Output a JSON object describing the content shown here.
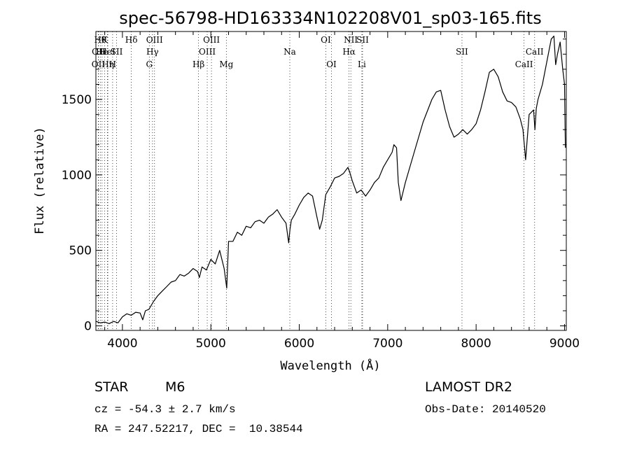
{
  "chart_data": {
    "type": "line",
    "title": "spec-56798-HD163334N102208V01_sp03-165.fits",
    "xlabel": "Wavelength (Å)",
    "ylabel": "Flux (relative)",
    "xlim": [
      3700,
      9020
    ],
    "ylim": [
      -30,
      1950
    ],
    "xticks": [
      4000,
      5000,
      6000,
      7000,
      8000,
      9000
    ],
    "yticks": [
      0,
      500,
      1000,
      1500
    ],
    "series": [
      {
        "name": "spectrum",
        "x": [
          3700,
          3750,
          3800,
          3850,
          3900,
          3950,
          4000,
          4050,
          4100,
          4150,
          4200,
          4230,
          4260,
          4300,
          4350,
          4400,
          4450,
          4500,
          4550,
          4600,
          4650,
          4700,
          4750,
          4800,
          4850,
          4870,
          4900,
          4950,
          5000,
          5050,
          5100,
          5150,
          5180,
          5200,
          5250,
          5300,
          5350,
          5400,
          5450,
          5500,
          5550,
          5600,
          5650,
          5700,
          5750,
          5800,
          5850,
          5880,
          5895,
          5910,
          5950,
          6000,
          6050,
          6100,
          6150,
          6200,
          6230,
          6260,
          6300,
          6350,
          6400,
          6450,
          6500,
          6550,
          6570,
          6600,
          6650,
          6700,
          6750,
          6800,
          6850,
          6900,
          6950,
          7000,
          7050,
          7070,
          7100,
          7120,
          7150,
          7200,
          7300,
          7400,
          7500,
          7550,
          7600,
          7650,
          7700,
          7750,
          7800,
          7850,
          7900,
          7950,
          8000,
          8050,
          8100,
          8150,
          8200,
          8250,
          8300,
          8350,
          8400,
          8450,
          8500,
          8530,
          8545,
          8560,
          8600,
          8650,
          8665,
          8680,
          8700,
          8750,
          8800,
          8850,
          8880,
          8900,
          8920,
          8950,
          8980,
          9000,
          9010
        ],
        "y": [
          30,
          20,
          25,
          15,
          30,
          20,
          60,
          80,
          70,
          90,
          85,
          40,
          100,
          110,
          160,
          200,
          230,
          260,
          290,
          300,
          340,
          330,
          350,
          380,
          360,
          320,
          390,
          370,
          440,
          410,
          500,
          380,
          250,
          560,
          560,
          620,
          600,
          660,
          650,
          690,
          700,
          680,
          720,
          740,
          770,
          720,
          680,
          550,
          640,
          700,
          740,
          800,
          850,
          880,
          860,
          720,
          640,
          700,
          870,
          920,
          980,
          990,
          1010,
          1050,
          1020,
          960,
          880,
          900,
          860,
          900,
          950,
          980,
          1050,
          1100,
          1150,
          1200,
          1180,
          950,
          830,
          950,
          1150,
          1350,
          1500,
          1550,
          1560,
          1430,
          1320,
          1250,
          1270,
          1300,
          1270,
          1300,
          1340,
          1430,
          1550,
          1680,
          1700,
          1650,
          1550,
          1490,
          1480,
          1450,
          1370,
          1300,
          1200,
          1100,
          1400,
          1430,
          1300,
          1440,
          1500,
          1600,
          1750,
          1900,
          1920,
          1730,
          1800,
          1880,
          1700,
          1600,
          1180
        ]
      }
    ],
    "line_markers": [
      {
        "wl": 3727,
        "row": 3,
        "label": "OII"
      },
      {
        "wl": 3730,
        "row": 2,
        "label": "OII"
      },
      {
        "wl": 3750,
        "row": 1,
        "label": "Hθ"
      },
      {
        "wl": 3770,
        "row": 2,
        "label": "He"
      },
      {
        "wl": 3798,
        "row": 1,
        "label": "K"
      },
      {
        "wl": 3830,
        "row": 2,
        "label": "HeI"
      },
      {
        "wl": 3835,
        "row": 3,
        "label": "Hη"
      },
      {
        "wl": 3889,
        "row": 3,
        "label": "H"
      },
      {
        "wl": 3934,
        "row": 2,
        "label": "SII"
      },
      {
        "wl": 4101,
        "row": 1,
        "label": "Hδ"
      },
      {
        "wl": 4304,
        "row": 3,
        "label": "G"
      },
      {
        "wl": 4340,
        "row": 2,
        "label": "Hγ"
      },
      {
        "wl": 4363,
        "row": 1,
        "label": "OIII"
      },
      {
        "wl": 4861,
        "row": 3,
        "label": "Hβ"
      },
      {
        "wl": 4959,
        "row": 2,
        "label": "OIII"
      },
      {
        "wl": 5007,
        "row": 1,
        "label": "OIII"
      },
      {
        "wl": 5175,
        "row": 3,
        "label": "Mg"
      },
      {
        "wl": 5893,
        "row": 2,
        "label": "Na"
      },
      {
        "wl": 6300,
        "row": 1,
        "label": "OI"
      },
      {
        "wl": 6364,
        "row": 3,
        "label": "OI"
      },
      {
        "wl": 6563,
        "row": 2,
        "label": "Hα"
      },
      {
        "wl": 6583,
        "row": 1,
        "label": "NII"
      },
      {
        "wl": 6716,
        "row": 1,
        "label": "SII"
      },
      {
        "wl": 6708,
        "row": 3,
        "label": "Li"
      },
      {
        "wl": 7840,
        "row": 2,
        "label": "SII"
      },
      {
        "wl": 8542,
        "row": 3,
        "label": "CaII"
      },
      {
        "wl": 8662,
        "row": 2,
        "label": "CaII"
      }
    ]
  },
  "info": {
    "object_class": "STAR",
    "subclass": "M6",
    "survey": "LAMOST DR2",
    "redshift": "cz = -54.3 ± 2.7 km/s",
    "obs_date": "Obs-Date: 20140520",
    "coords": "RA = 247.52217, DEC =  10.38544"
  }
}
